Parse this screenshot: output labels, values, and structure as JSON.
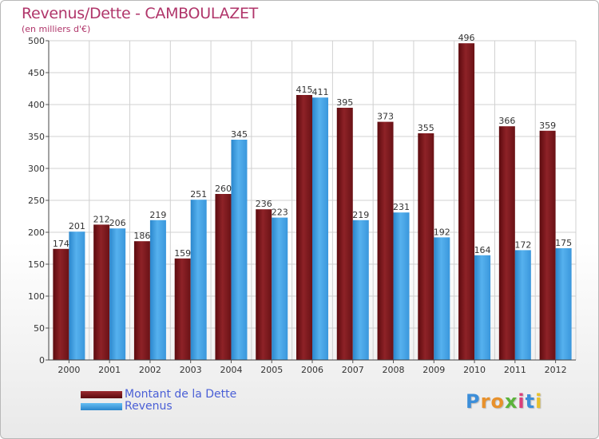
{
  "title": "Revenus/Dette - CAMBOULAZET",
  "subtitle": "(en milliers d'€)",
  "logo_text": "Proxiti",
  "colors": {
    "debt": "#8b1a1f",
    "revenue": "#3b9ee3",
    "title": "#b0356a",
    "legend_text": "#4a5fd6"
  },
  "chart_data": {
    "type": "bar",
    "title": "Revenus/Dette - CAMBOULAZET",
    "subtitle": "(en milliers d'€)",
    "xlabel": "",
    "ylabel": "",
    "ylim": [
      0,
      500
    ],
    "yticks": [
      0,
      50,
      100,
      150,
      200,
      250,
      300,
      350,
      400,
      450,
      500
    ],
    "grid": true,
    "legend_position": "bottom-left",
    "categories": [
      "2000",
      "2001",
      "2002",
      "2003",
      "2004",
      "2005",
      "2006",
      "2007",
      "2008",
      "2009",
      "2010",
      "2011",
      "2012"
    ],
    "series": [
      {
        "name": "Montant de la Dette",
        "values": [
          174,
          212,
          186,
          159,
          260,
          236,
          415,
          395,
          373,
          355,
          496,
          366,
          359
        ]
      },
      {
        "name": "Revenus",
        "values": [
          201,
          206,
          219,
          251,
          345,
          223,
          411,
          219,
          231,
          192,
          164,
          172,
          175
        ]
      }
    ]
  }
}
